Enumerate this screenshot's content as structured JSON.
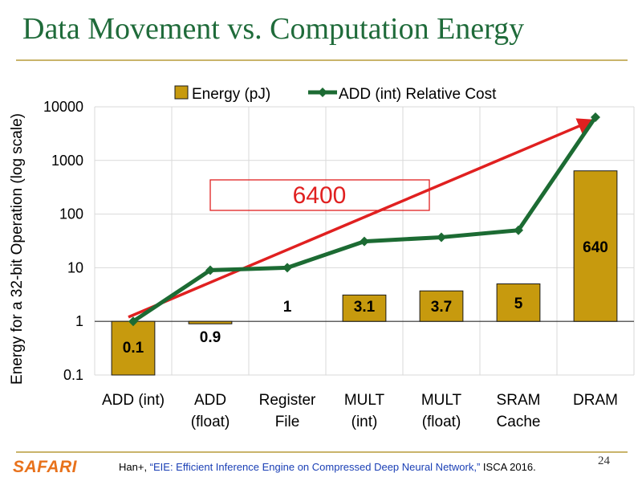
{
  "slide": {
    "title": "Data Movement vs. Computation Energy",
    "page_number": "24",
    "logo": "SAFARI",
    "citation": {
      "authors": "Han+, ",
      "paper": "“EIE: Efficient Inference Engine on Compressed Deep Neural Network,”",
      "venue": " ISCA 2016."
    }
  },
  "chart_data": {
    "type": "bar",
    "ylabel": "Energy for a 32-bit Operation (log scale)",
    "xlabel": "",
    "yscale": "log",
    "ylim": [
      0.1,
      10000
    ],
    "yticks": [
      "0.1",
      "1",
      "10",
      "100",
      "1000",
      "10000"
    ],
    "ytick_values": [
      0.1,
      1,
      10,
      100,
      1000,
      10000
    ],
    "categories": [
      "ADD (int)",
      "ADD (float)",
      "Register File",
      "MULT (int)",
      "MULT (float)",
      "SRAM Cache",
      "DRAM"
    ],
    "category_lines": [
      [
        "ADD (int)"
      ],
      [
        "ADD",
        "(float)"
      ],
      [
        "Register",
        "File"
      ],
      [
        "MULT",
        "(int)"
      ],
      [
        "MULT",
        "(float)"
      ],
      [
        "SRAM",
        "Cache"
      ],
      [
        "DRAM"
      ]
    ],
    "series": [
      {
        "name": "Energy (pJ)",
        "kind": "bar",
        "color": "#c79a0e",
        "values": [
          0.1,
          0.9,
          1,
          3.1,
          3.7,
          5,
          640
        ]
      },
      {
        "name": "ADD (int) Relative Cost",
        "kind": "line",
        "color": "#1c6b33",
        "values": [
          1,
          9,
          10,
          31,
          37,
          50,
          6400
        ]
      }
    ],
    "data_labels": [
      "0.1",
      "0.9",
      "1",
      "3.1",
      "3.7",
      "5",
      "640"
    ],
    "legend_position": "top",
    "annotation": {
      "text": "6400",
      "color": "#e02020",
      "arrow_from": 0,
      "arrow_to": 6
    }
  }
}
